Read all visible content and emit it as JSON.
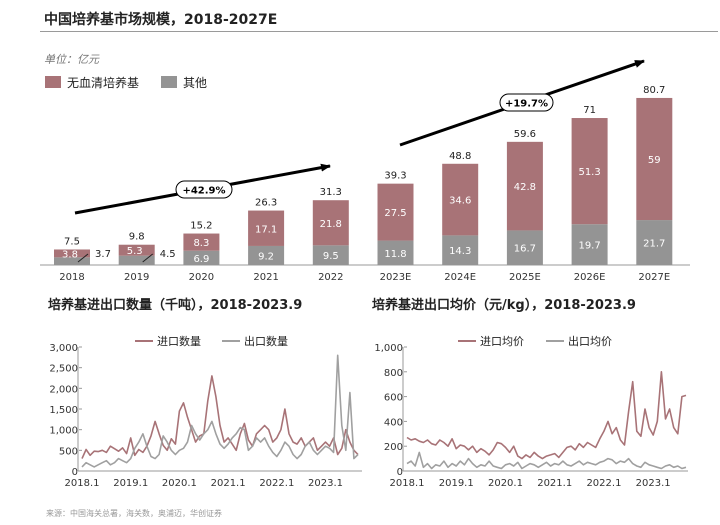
{
  "title": "中国培养基市场规模，2018-2027E",
  "source": "来源：中国海关总署，海关数，奥浦迈，华创证券",
  "colors": {
    "serum_free": "#a87377",
    "other": "#949494",
    "import": "#a87377",
    "export": "#a0a0a0",
    "arrow": "#000000"
  },
  "chart_data": [
    {
      "type": "bar",
      "stacked": true,
      "unit": "单位：亿元",
      "categories": [
        "2018",
        "2019",
        "2020",
        "2021",
        "2022",
        "2023E",
        "2024E",
        "2025E",
        "2026E",
        "2027E"
      ],
      "series": [
        {
          "name": "其他",
          "values": [
            3.7,
            4.5,
            6.9,
            9.2,
            9.5,
            11.8,
            14.3,
            16.7,
            19.7,
            21.7
          ]
        },
        {
          "name": "无血清培养基",
          "values": [
            3.8,
            5.3,
            8.3,
            17.1,
            21.8,
            27.5,
            34.6,
            42.8,
            51.3,
            59.0
          ]
        }
      ],
      "totals": [
        7.5,
        9.8,
        15.2,
        26.3,
        31.3,
        39.3,
        48.8,
        59.6,
        71.0,
        80.7
      ],
      "annotations": [
        "+42.9%",
        "+19.7%"
      ],
      "legend_position": "top-left",
      "ylim": [
        0,
        90
      ]
    },
    {
      "type": "line",
      "title": "培养基进出口数量（千吨），2018-2023.9",
      "ylim": [
        0,
        3000
      ],
      "yticks": [
        "0",
        "500",
        "1,000",
        "1,500",
        "2,000",
        "2,500",
        "3,000"
      ],
      "xticks": [
        "2018.1",
        "2019.1",
        "2020.1",
        "2021.1",
        "2022.1",
        "2023.1"
      ],
      "x_start": "2018.1",
      "x_end": "2023.9",
      "legend_position": "top",
      "series": [
        {
          "name": "进口数量",
          "values": [
            300,
            520,
            380,
            480,
            470,
            500,
            450,
            600,
            540,
            480,
            560,
            420,
            800,
            380,
            520,
            450,
            600,
            850,
            1200,
            900,
            620,
            500,
            780,
            650,
            1450,
            1650,
            1300,
            1000,
            700,
            850,
            900,
            1700,
            2300,
            1800,
            1100,
            700,
            800,
            650,
            500,
            900,
            1150,
            750,
            600,
            900,
            1000,
            1100,
            1000,
            700,
            800,
            1000,
            1500,
            900,
            700,
            650,
            800,
            600,
            700,
            800,
            500,
            600,
            700,
            600,
            800,
            400,
            550,
            1000,
            700,
            500,
            400
          ]
        },
        {
          "name": "出口数量",
          "values": [
            100,
            200,
            150,
            100,
            150,
            200,
            250,
            150,
            200,
            300,
            250,
            200,
            300,
            550,
            700,
            900,
            600,
            350,
            300,
            400,
            850,
            700,
            500,
            400,
            500,
            550,
            700,
            1100,
            900,
            750,
            900,
            1000,
            1200,
            900,
            650,
            550,
            650,
            800,
            900,
            1050,
            1000,
            500,
            600,
            800,
            700,
            800,
            600,
            450,
            350,
            500,
            700,
            600,
            400,
            300,
            400,
            600,
            700,
            500,
            400,
            500,
            600,
            550,
            450,
            2800,
            1100,
            500,
            1900,
            300,
            400
          ]
        }
      ]
    },
    {
      "type": "line",
      "title": "培养基进出口均价（元/kg），2018-2023.9",
      "ylim": [
        0,
        1000
      ],
      "yticks": [
        "0",
        "200",
        "400",
        "600",
        "800",
        "1,000"
      ],
      "xticks": [
        "2018.1",
        "2019.1",
        "2020.1",
        "2021.1",
        "2022.1",
        "2023.1"
      ],
      "x_start": "2018.1",
      "x_end": "2023.9",
      "legend_position": "top",
      "series": [
        {
          "name": "进口均价",
          "values": [
            270,
            250,
            260,
            240,
            230,
            250,
            220,
            210,
            250,
            230,
            200,
            260,
            180,
            210,
            200,
            170,
            200,
            150,
            180,
            160,
            130,
            170,
            230,
            220,
            190,
            150,
            200,
            120,
            100,
            130,
            110,
            150,
            120,
            100,
            120,
            130,
            140,
            110,
            150,
            190,
            200,
            170,
            220,
            190,
            230,
            210,
            190,
            260,
            320,
            400,
            300,
            350,
            250,
            210,
            480,
            720,
            320,
            280,
            500,
            350,
            290,
            400,
            800,
            420,
            500,
            350,
            300,
            600,
            610
          ]
        },
        {
          "name": "出口均价",
          "values": [
            60,
            80,
            40,
            150,
            30,
            60,
            20,
            50,
            40,
            80,
            30,
            60,
            40,
            80,
            50,
            100,
            60,
            30,
            50,
            40,
            80,
            40,
            30,
            20,
            50,
            60,
            40,
            70,
            20,
            40,
            60,
            50,
            30,
            50,
            70,
            40,
            60,
            50,
            80,
            50,
            40,
            60,
            80,
            50,
            70,
            60,
            50,
            70,
            80,
            100,
            90,
            60,
            80,
            70,
            100,
            60,
            40,
            30,
            70,
            50,
            40,
            30,
            20,
            40,
            50,
            30,
            40,
            20,
            30
          ]
        }
      ]
    }
  ]
}
